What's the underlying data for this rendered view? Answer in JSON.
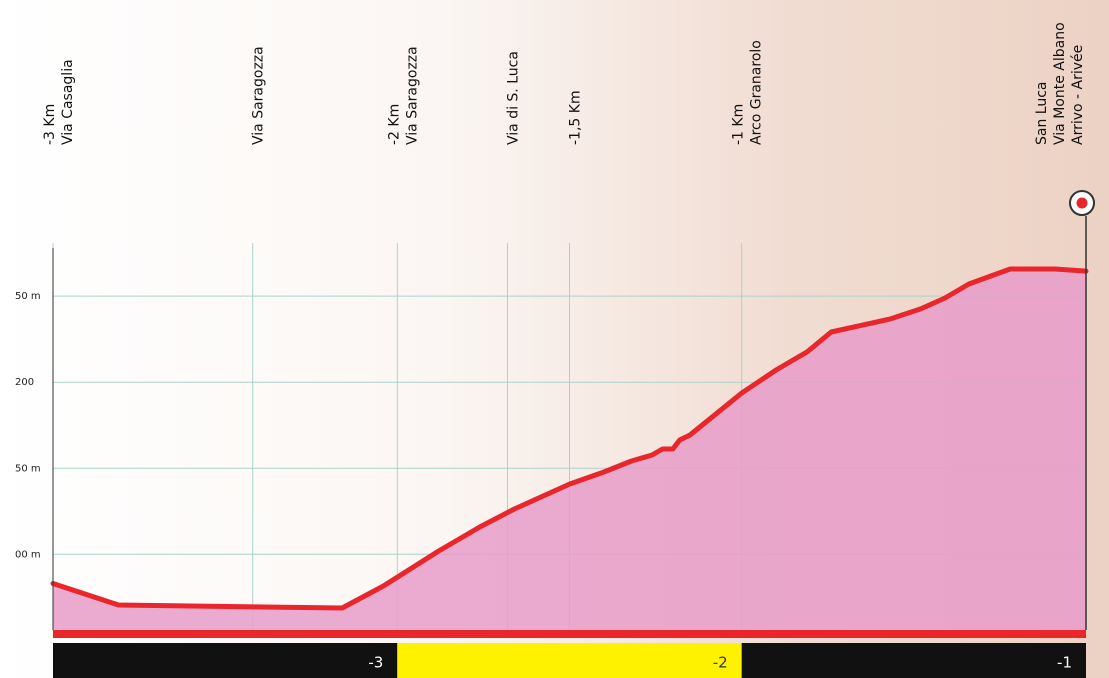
{
  "chart_data": {
    "type": "area",
    "x": [
      -3,
      -2.81,
      -2.16,
      -2.04,
      -1.88,
      -1.76,
      -1.66,
      -1.5,
      -1.4,
      -1.32,
      -1.26,
      -1.23,
      -1.2,
      -1.18,
      -1.15,
      -1,
      -0.9,
      -0.81,
      -0.74,
      -0.66,
      -0.57,
      -0.48,
      -0.41,
      -0.34,
      -0.22,
      -0.09,
      0
    ],
    "series": [
      {
        "color": "#e8262b",
        "fill": "#e79cc9",
        "values": [
          83,
          70.5,
          68.8,
          81.6,
          101.9,
          115.9,
          126.3,
          140.8,
          147.8,
          154.2,
          157.7,
          161.2,
          161.2,
          166.4,
          169.3,
          193.7,
          207.1,
          217.6,
          229.2,
          232.7,
          236.7,
          242.6,
          248.9,
          257.1,
          265.8,
          265.8,
          264.6
        ]
      }
    ],
    "xlim": [
      -3,
      0
    ],
    "ylim": [
      56,
      278
    ],
    "yticks": [
      {
        "value": 250,
        "label": "50 m"
      },
      200,
      {
        "value": 150,
        "label": "50 m"
      },
      {
        "value": 100,
        "label": "00 m"
      }
    ],
    "grid": true,
    "grid_color": "#a9d3cc",
    "landmarks": [
      {
        "x": -3,
        "labels": [
          "-3 Km",
          "Via Casaglia"
        ]
      },
      {
        "x": -2.42,
        "labels": [
          "Via Saragozza"
        ]
      },
      {
        "x": -2,
        "labels": [
          "-2 Km",
          "Via Saragozza"
        ]
      },
      {
        "x": -1.68,
        "labels": [
          "Via di S. Luca"
        ]
      },
      {
        "x": -1.5,
        "labels": [
          "-1,5 Km"
        ]
      },
      {
        "x": -1,
        "labels": [
          "-1 Km",
          "Arco Granarolo"
        ]
      },
      {
        "x": 0,
        "labels": [
          "San Luca",
          "Via Monte Albano",
          "Arrivo - Arivée"
        ]
      }
    ],
    "km_bar": [
      {
        "label": "-3",
        "color": "#111111",
        "text_color": "#ffffff"
      },
      {
        "label": "-2",
        "color": "#fff200",
        "text_color": "#333333"
      },
      {
        "label": "-1",
        "color": "#111111",
        "text_color": "#ffffff"
      }
    ]
  }
}
